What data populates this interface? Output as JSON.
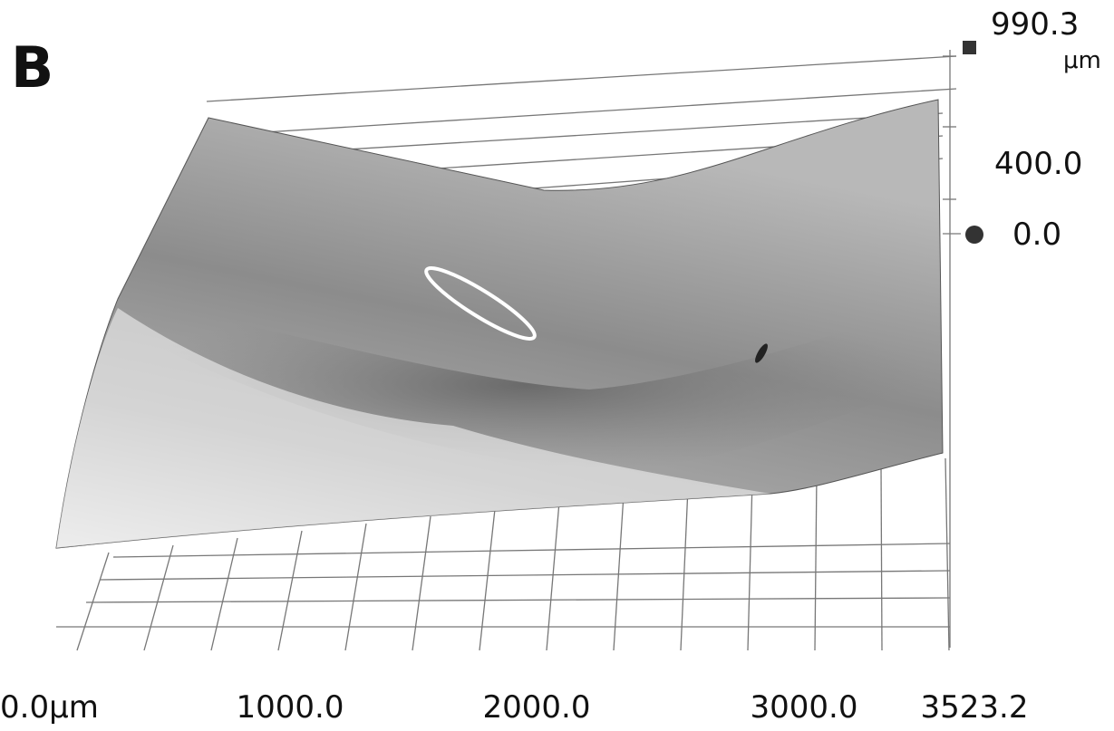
{
  "panel_label": "B",
  "z_axis": {
    "max_label": "990.3",
    "unit": "μm",
    "labels": [
      "400.0",
      "0.0"
    ]
  },
  "x_axis": {
    "labels": [
      "0.0μm",
      "1000.0",
      "2000.0",
      "3000.0",
      "3523.2"
    ]
  }
}
